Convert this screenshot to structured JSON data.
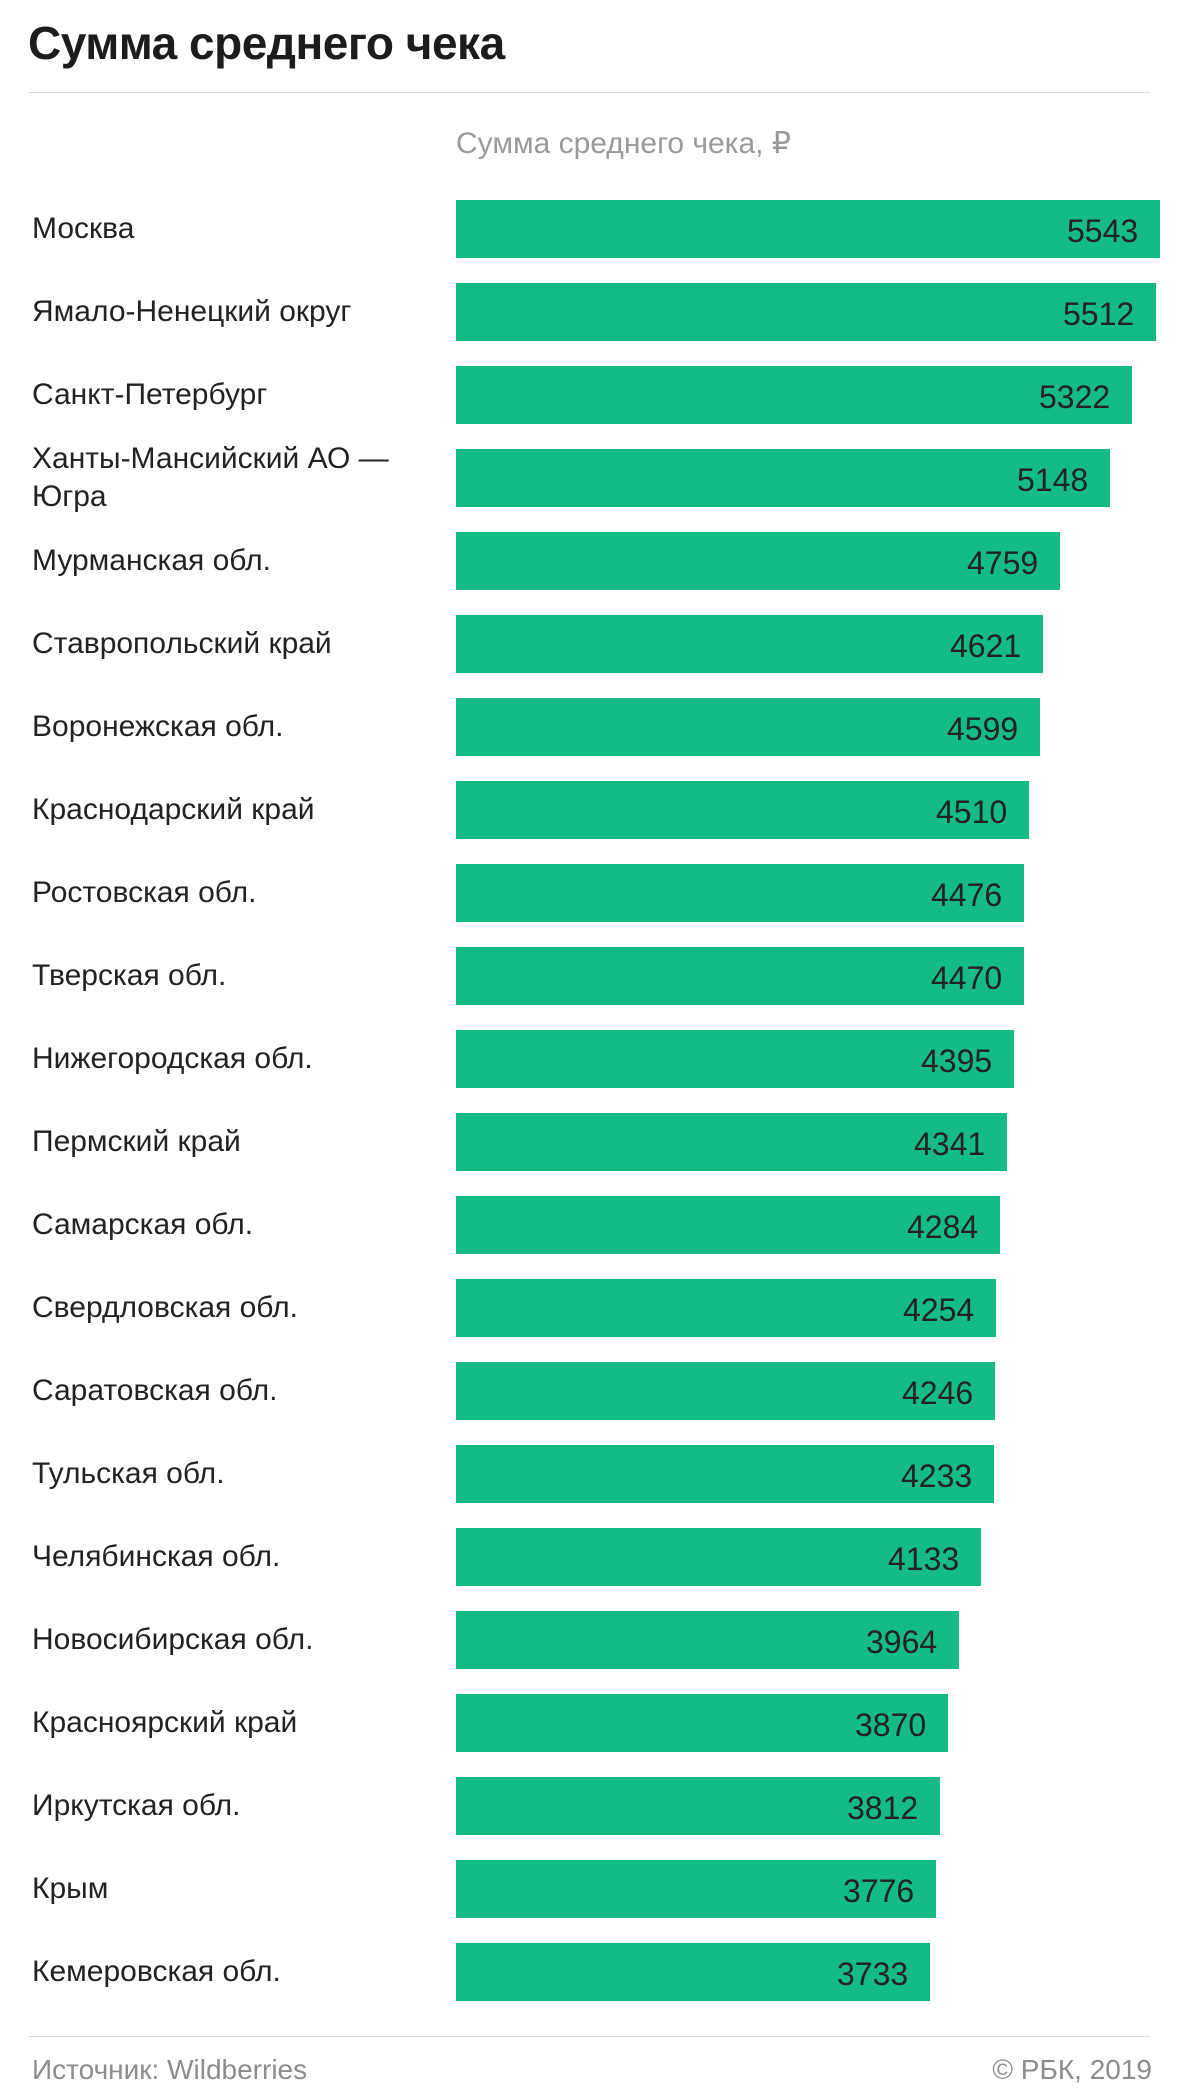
{
  "header": {
    "title": "Сумма среднего чека"
  },
  "footer": {
    "source": "Источник: Wildberries",
    "copyright": "© РБК, 2019"
  },
  "colors": {
    "bar": "#14bb87",
    "text": "#222222",
    "muted": "#9a9a9a"
  },
  "chart_data": {
    "type": "bar",
    "orientation": "horizontal",
    "series_label": "Сумма среднего чека, ₽",
    "categories": [
      "Москва",
      "Ямало-Ненецкий округ",
      "Санкт-Петербург",
      "Ханты-Мансийский АО — Югра",
      "Мурманская обл.",
      "Ставропольский край",
      "Воронежская обл.",
      "Краснодарский край",
      "Ростовская обл.",
      "Тверская обл.",
      "Нижегородская обл.",
      "Пермский край",
      "Самарская обл.",
      "Свердловская обл.",
      "Саратовская обл.",
      "Тульская обл.",
      "Челябинская обл.",
      "Новосибирская обл.",
      "Красноярский край",
      "Иркутская обл.",
      "Крым",
      "Кемеровская обл."
    ],
    "values": [
      5543,
      5512,
      5322,
      5148,
      4759,
      4621,
      4599,
      4510,
      4476,
      4470,
      4395,
      4341,
      4284,
      4254,
      4246,
      4233,
      4133,
      3964,
      3870,
      3812,
      3776,
      3733
    ],
    "xlim": [
      0,
      5543
    ],
    "grid": false,
    "legend": "none",
    "data_labels": "inside-end"
  }
}
